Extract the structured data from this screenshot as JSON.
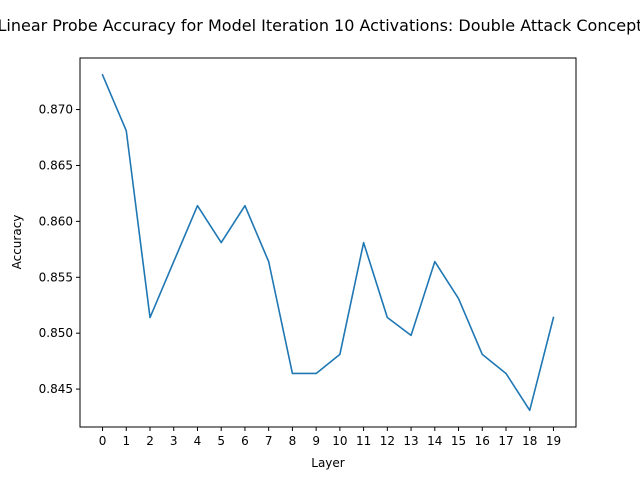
{
  "chart_data": {
    "type": "line",
    "title": "Linear Probe Accuracy for Model Iteration 10 Activations: Double Attack Concept",
    "xlabel": "Layer",
    "ylabel": "Accuracy",
    "x": [
      0,
      1,
      2,
      3,
      4,
      5,
      6,
      7,
      8,
      9,
      10,
      11,
      12,
      13,
      14,
      15,
      16,
      17,
      18,
      19
    ],
    "series": [
      {
        "color": "#1f77b4",
        "values": [
          0.8731,
          0.8681,
          0.8514,
          0.8564,
          0.8614,
          0.8581,
          0.8614,
          0.8564,
          0.8464,
          0.8464,
          0.8481,
          0.8581,
          0.8514,
          0.8498,
          0.8564,
          0.8531,
          0.8481,
          0.8464,
          0.8431,
          0.8514
        ]
      }
    ],
    "xlim": [
      -0.95,
      19.95
    ],
    "ylim": [
      0.84161,
      0.87461
    ],
    "xticks": [
      "0",
      "1",
      "2",
      "3",
      "4",
      "5",
      "6",
      "7",
      "8",
      "9",
      "10",
      "11",
      "12",
      "13",
      "14",
      "15",
      "16",
      "17",
      "18",
      "19"
    ],
    "yticks": [
      0.845,
      0.85,
      0.855,
      0.86,
      0.865,
      0.87
    ],
    "ytick_labels": [
      "0.845",
      "0.850",
      "0.855",
      "0.860",
      "0.865",
      "0.870"
    ],
    "grid": false,
    "legend": "none"
  }
}
